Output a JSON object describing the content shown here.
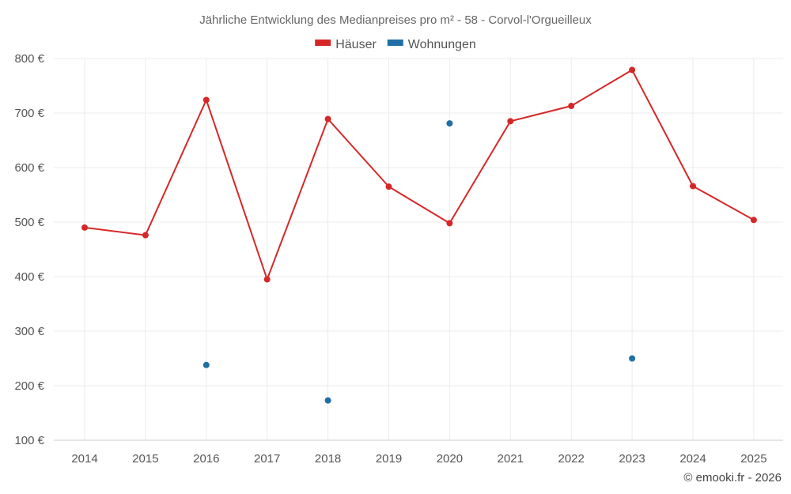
{
  "chart_data": {
    "type": "line",
    "title": "Jährliche Entwicklung des Medianpreises pro m² - 58 - Corvol-l'Orgueilleux",
    "categories": [
      "2014",
      "2015",
      "2016",
      "2017",
      "2018",
      "2019",
      "2020",
      "2021",
      "2022",
      "2023",
      "2024",
      "2025"
    ],
    "series": [
      {
        "name": "Häuser",
        "color": "#d62728",
        "style": "line+markers",
        "values": [
          490,
          476,
          724,
          395,
          689,
          565,
          498,
          685,
          713,
          779,
          566,
          504
        ]
      },
      {
        "name": "Wohnungen",
        "color": "#1f6fa6",
        "style": "markers",
        "values": [
          null,
          null,
          238,
          null,
          173,
          null,
          681,
          null,
          null,
          250,
          null,
          null
        ]
      }
    ],
    "y_ticks": [
      100,
      200,
      300,
      400,
      500,
      600,
      700,
      800
    ],
    "y_tick_suffix": " €",
    "ylim": [
      100,
      800
    ],
    "grid": true,
    "legend_position": "top-center",
    "xlabel": "",
    "ylabel": ""
  },
  "credit": "© emooki.fr - 2026"
}
